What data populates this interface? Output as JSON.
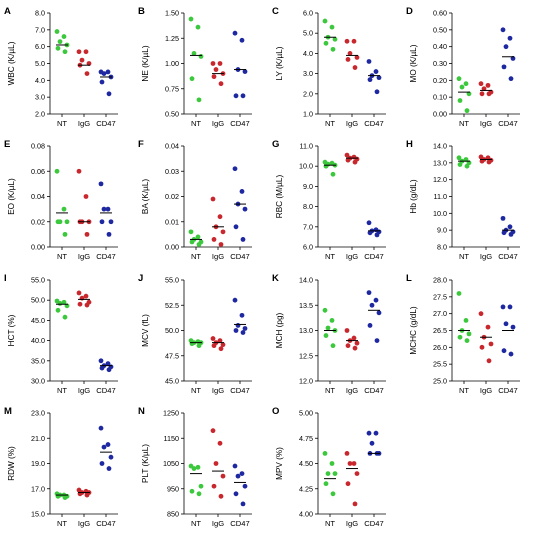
{
  "colors": {
    "NT": "#3cc83c",
    "IgG": "#c8282d",
    "CD47": "#1e28a0"
  },
  "chart_data": [
    {
      "panel": "A",
      "type": "scatter",
      "ylabel": "WBC (K/µL)",
      "ylim": [
        2.0,
        8.0
      ],
      "yticks": [
        "2.0",
        "3.0",
        "4.0",
        "5.0",
        "6.0",
        "7.0",
        "8.0"
      ],
      "categories": [
        "NT",
        "IgG",
        "CD47"
      ],
      "series": [
        {
          "group": "NT",
          "values": [
            6.9,
            6.6,
            6.3,
            6.1,
            5.9,
            5.7
          ],
          "mean": 6.1
        },
        {
          "group": "IgG",
          "values": [
            5.7,
            5.7,
            5.2,
            5.0,
            4.9,
            4.4
          ],
          "mean": 4.9
        },
        {
          "group": "CD47",
          "values": [
            4.5,
            4.5,
            4.4,
            4.2,
            3.9,
            3.2
          ],
          "mean": 4.2
        }
      ]
    },
    {
      "panel": "B",
      "type": "scatter",
      "ylabel": "NE (K/µL)",
      "ylim": [
        0.5,
        1.5
      ],
      "yticks": [
        "0.50",
        "0.75",
        "1.00",
        "1.25",
        "1.50"
      ],
      "categories": [
        "NT",
        "IgG",
        "CD47"
      ],
      "series": [
        {
          "group": "NT",
          "values": [
            1.44,
            1.36,
            1.1,
            1.07,
            0.85,
            0.64
          ],
          "mean": 1.08
        },
        {
          "group": "IgG",
          "values": [
            1.0,
            1.0,
            0.94,
            0.9,
            0.87,
            0.8
          ],
          "mean": 0.9
        },
        {
          "group": "CD47",
          "values": [
            1.3,
            1.23,
            0.94,
            0.92,
            0.68,
            0.68
          ],
          "mean": 0.94
        }
      ]
    },
    {
      "panel": "C",
      "type": "scatter",
      "ylabel": "LY (K/µL)",
      "ylim": [
        1.0,
        6.0
      ],
      "yticks": [
        "1.0",
        "2.0",
        "3.0",
        "4.0",
        "5.0",
        "6.0"
      ],
      "categories": [
        "NT",
        "IgG",
        "CD47"
      ],
      "series": [
        {
          "group": "NT",
          "values": [
            5.6,
            5.3,
            4.8,
            4.7,
            4.5,
            4.2
          ],
          "mean": 4.8
        },
        {
          "group": "IgG",
          "values": [
            4.6,
            4.6,
            4.0,
            3.8,
            3.7,
            3.3
          ],
          "mean": 3.9
        },
        {
          "group": "CD47",
          "values": [
            3.6,
            3.1,
            2.9,
            2.8,
            2.7,
            2.1
          ],
          "mean": 2.9
        }
      ]
    },
    {
      "panel": "D",
      "type": "scatter",
      "ylabel": "MO (K/µL)",
      "ylim": [
        0.0,
        0.6
      ],
      "yticks": [
        "0.00",
        "0.10",
        "0.20",
        "0.30",
        "0.40",
        "0.50",
        "0.60"
      ],
      "categories": [
        "NT",
        "IgG",
        "CD47"
      ],
      "series": [
        {
          "group": "NT",
          "values": [
            0.21,
            0.18,
            0.16,
            0.12,
            0.08,
            0.02
          ],
          "mean": 0.13
        },
        {
          "group": "IgG",
          "values": [
            0.18,
            0.17,
            0.15,
            0.13,
            0.12,
            0.12
          ],
          "mean": 0.14
        },
        {
          "group": "CD47",
          "values": [
            0.5,
            0.45,
            0.4,
            0.33,
            0.28,
            0.21
          ],
          "mean": 0.34
        }
      ]
    },
    {
      "panel": "E",
      "type": "scatter",
      "ylabel": "EO (K/µL)",
      "ylim": [
        0.0,
        0.08
      ],
      "yticks": [
        "0.00",
        "0.02",
        "0.04",
        "0.06",
        "0.08"
      ],
      "categories": [
        "NT",
        "IgG",
        "CD47"
      ],
      "series": [
        {
          "group": "NT",
          "values": [
            0.06,
            0.03,
            0.02,
            0.02,
            0.02,
            0.01
          ],
          "mean": 0.027
        },
        {
          "group": "IgG",
          "values": [
            0.06,
            0.04,
            0.02,
            0.02,
            0.02,
            0.01
          ],
          "mean": 0.02
        },
        {
          "group": "CD47",
          "values": [
            0.05,
            0.03,
            0.03,
            0.02,
            0.02,
            0.01
          ],
          "mean": 0.027
        }
      ]
    },
    {
      "panel": "F",
      "type": "scatter",
      "ylabel": "BA (K/µL)",
      "ylim": [
        0.0,
        0.04
      ],
      "yticks": [
        "0.00",
        "0.01",
        "0.02",
        "0.03",
        "0.04"
      ],
      "categories": [
        "NT",
        "IgG",
        "CD47"
      ],
      "series": [
        {
          "group": "NT",
          "values": [
            0.006,
            0.004,
            0.003,
            0.002,
            0.002,
            0.001
          ],
          "mean": 0.003
        },
        {
          "group": "IgG",
          "values": [
            0.019,
            0.012,
            0.008,
            0.006,
            0.003,
            0.001
          ],
          "mean": 0.008
        },
        {
          "group": "CD47",
          "values": [
            0.031,
            0.022,
            0.017,
            0.015,
            0.008,
            0.003
          ],
          "mean": 0.017
        }
      ]
    },
    {
      "panel": "G",
      "type": "scatter",
      "ylabel": "RBC (M/µL)",
      "ylim": [
        6.0,
        11.0
      ],
      "yticks": [
        "6.0",
        "7.0",
        "8.0",
        "9.0",
        "10.0",
        "11.0"
      ],
      "categories": [
        "NT",
        "IgG",
        "CD47"
      ],
      "series": [
        {
          "group": "NT",
          "values": [
            10.2,
            10.15,
            10.1,
            10.05,
            10.0,
            9.6
          ],
          "mean": 10.05
        },
        {
          "group": "IgG",
          "values": [
            10.55,
            10.45,
            10.4,
            10.35,
            10.3,
            10.2
          ],
          "mean": 10.4
        },
        {
          "group": "CD47",
          "values": [
            7.2,
            6.85,
            6.8,
            6.75,
            6.7,
            6.6
          ],
          "mean": 6.8
        }
      ]
    },
    {
      "panel": "H",
      "type": "scatter",
      "ylabel": "Hb (g/dL)",
      "ylim": [
        8.0,
        14.0
      ],
      "yticks": [
        "8.0",
        "9.0",
        "10.0",
        "11.0",
        "12.0",
        "13.0",
        "14.0"
      ],
      "categories": [
        "NT",
        "IgG",
        "CD47"
      ],
      "series": [
        {
          "group": "NT",
          "values": [
            13.3,
            13.2,
            13.1,
            13.0,
            12.9,
            12.8
          ],
          "mean": 13.1
        },
        {
          "group": "IgG",
          "values": [
            13.35,
            13.3,
            13.2,
            13.15,
            13.1,
            13.05
          ],
          "mean": 13.2
        },
        {
          "group": "CD47",
          "values": [
            9.7,
            9.2,
            9.0,
            8.9,
            8.85,
            8.75
          ],
          "mean": 9.0
        }
      ]
    },
    {
      "panel": "I",
      "type": "scatter",
      "ylabel": "HCT (%)",
      "ylim": [
        30.0,
        55.0
      ],
      "yticks": [
        "30.0",
        "35.0",
        "40.0",
        "45.0",
        "50.0",
        "55.0"
      ],
      "categories": [
        "NT",
        "IgG",
        "CD47"
      ],
      "series": [
        {
          "group": "NT",
          "values": [
            49.8,
            49.5,
            49.2,
            48.6,
            47.5,
            45.8
          ],
          "mean": 49.0
        },
        {
          "group": "IgG",
          "values": [
            51.8,
            51.0,
            50.5,
            49.5,
            49.0,
            48.8
          ],
          "mean": 50.2
        },
        {
          "group": "CD47",
          "values": [
            35.0,
            34.3,
            33.8,
            33.5,
            33.2,
            32.8
          ],
          "mean": 33.8
        }
      ]
    },
    {
      "panel": "J",
      "type": "scatter",
      "ylabel": "MCV (fL)",
      "ylim": [
        45.0,
        55.0
      ],
      "yticks": [
        "45.0",
        "47.5",
        "50.0",
        "52.5",
        "55.0"
      ],
      "categories": [
        "NT",
        "IgG",
        "CD47"
      ],
      "series": [
        {
          "group": "NT",
          "values": [
            49.0,
            48.9,
            48.8,
            48.8,
            48.7,
            48.5
          ],
          "mean": 48.8
        },
        {
          "group": "IgG",
          "values": [
            49.2,
            49.0,
            48.8,
            48.6,
            48.5,
            48.2
          ],
          "mean": 48.8
        },
        {
          "group": "CD47",
          "values": [
            53.0,
            51.5,
            50.5,
            50.2,
            50.0,
            49.8
          ],
          "mean": 50.6
        }
      ]
    },
    {
      "panel": "K",
      "type": "scatter",
      "ylabel": "MCH (pg)",
      "ylim": [
        12.0,
        14.0
      ],
      "yticks": [
        "12.0",
        "12.5",
        "13.0",
        "13.5",
        "14.0"
      ],
      "categories": [
        "NT",
        "IgG",
        "CD47"
      ],
      "series": [
        {
          "group": "NT",
          "values": [
            13.4,
            13.2,
            13.05,
            13.0,
            12.9,
            12.7
          ],
          "mean": 13.0
        },
        {
          "group": "IgG",
          "values": [
            13.0,
            12.85,
            12.8,
            12.75,
            12.7,
            12.65
          ],
          "mean": 12.8
        },
        {
          "group": "CD47",
          "values": [
            13.75,
            13.6,
            13.5,
            13.35,
            13.1,
            12.8
          ],
          "mean": 13.4
        }
      ]
    },
    {
      "panel": "L",
      "type": "scatter",
      "ylabel": "MCHC (g/dL)",
      "ylim": [
        25.0,
        28.0
      ],
      "yticks": [
        "25.0",
        "25.5",
        "26.0",
        "26.5",
        "27.0",
        "27.5",
        "28.0"
      ],
      "categories": [
        "NT",
        "IgG",
        "CD47"
      ],
      "series": [
        {
          "group": "NT",
          "values": [
            27.6,
            26.8,
            26.5,
            26.4,
            26.3,
            26.2
          ],
          "mean": 26.5
        },
        {
          "group": "IgG",
          "values": [
            27.0,
            26.6,
            26.3,
            26.1,
            26.0,
            25.6
          ],
          "mean": 26.3
        },
        {
          "group": "CD47",
          "values": [
            27.2,
            27.2,
            26.7,
            26.6,
            25.9,
            25.8
          ],
          "mean": 26.5
        }
      ]
    },
    {
      "panel": "M",
      "type": "scatter",
      "ylabel": "RDW (%)",
      "ylim": [
        15.0,
        23.0
      ],
      "yticks": [
        "15.0",
        "17.0",
        "19.0",
        "21.0",
        "23.0"
      ],
      "categories": [
        "NT",
        "IgG",
        "CD47"
      ],
      "series": [
        {
          "group": "NT",
          "values": [
            16.6,
            16.5,
            16.5,
            16.4,
            16.4,
            16.3
          ],
          "mean": 16.5
        },
        {
          "group": "IgG",
          "values": [
            16.9,
            16.8,
            16.7,
            16.7,
            16.6,
            16.5
          ],
          "mean": 16.7
        },
        {
          "group": "CD47",
          "values": [
            21.8,
            20.5,
            20.3,
            19.5,
            19.0,
            18.6
          ],
          "mean": 19.9
        }
      ]
    },
    {
      "panel": "N",
      "type": "scatter",
      "ylabel": "PLT (K/µL)",
      "ylim": [
        850,
        1250
      ],
      "yticks": [
        "850",
        "950",
        "1050",
        "1150",
        "1250"
      ],
      "categories": [
        "NT",
        "IgG",
        "CD47"
      ],
      "series": [
        {
          "group": "NT",
          "values": [
            1040,
            1035,
            1030,
            960,
            940,
            930
          ],
          "mean": 1010
        },
        {
          "group": "IgG",
          "values": [
            1180,
            1130,
            1050,
            1000,
            960,
            920
          ],
          "mean": 1020
        },
        {
          "group": "CD47",
          "values": [
            1040,
            1010,
            1000,
            960,
            930,
            890
          ],
          "mean": 975
        }
      ]
    },
    {
      "panel": "O",
      "type": "scatter",
      "ylabel": "MPV (%)",
      "ylim": [
        4.0,
        5.0
      ],
      "yticks": [
        "4.00",
        "4.25",
        "4.50",
        "4.75",
        "5.00"
      ],
      "categories": [
        "NT",
        "IgG",
        "CD47"
      ],
      "series": [
        {
          "group": "NT",
          "values": [
            4.6,
            4.5,
            4.4,
            4.4,
            4.3,
            4.2
          ],
          "mean": 4.35
        },
        {
          "group": "IgG",
          "values": [
            4.6,
            4.5,
            4.5,
            4.4,
            4.3,
            4.1
          ],
          "mean": 4.45
        },
        {
          "group": "CD47",
          "values": [
            4.8,
            4.8,
            4.7,
            4.6,
            4.6,
            4.6
          ],
          "mean": 4.6
        }
      ]
    }
  ]
}
